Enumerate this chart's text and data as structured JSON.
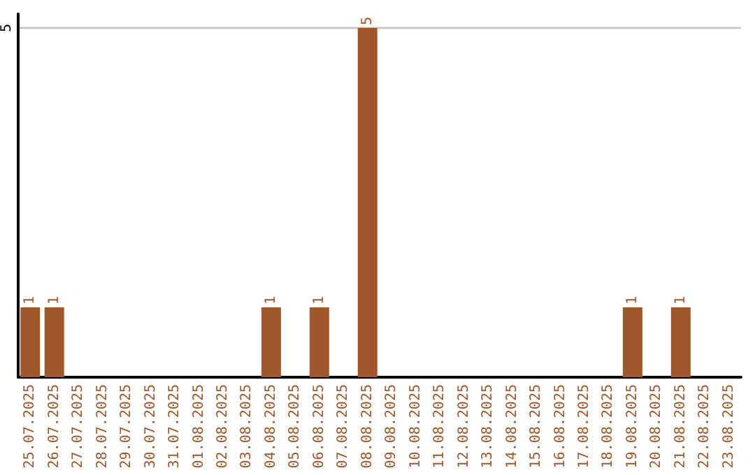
{
  "chart_data": {
    "type": "bar",
    "categories": [
      "25.07.2025",
      "26.07.2025",
      "27.07.2025",
      "28.07.2025",
      "29.07.2025",
      "30.07.2025",
      "31.07.2025",
      "01.08.2025",
      "02.08.2025",
      "03.08.2025",
      "04.08.2025",
      "05.08.2025",
      "06.08.2025",
      "07.08.2025",
      "08.08.2025",
      "09.08.2025",
      "10.08.2025",
      "11.08.2025",
      "12.08.2025",
      "13.08.2025",
      "14.08.2025",
      "15.08.2025",
      "16.08.2025",
      "17.08.2025",
      "18.08.2025",
      "19.08.2025",
      "20.08.2025",
      "21.08.2025",
      "22.08.2025",
      "23.08.2025"
    ],
    "values": [
      1,
      1,
      null,
      null,
      null,
      null,
      null,
      null,
      null,
      null,
      1,
      null,
      1,
      null,
      5,
      null,
      null,
      null,
      null,
      null,
      null,
      null,
      null,
      null,
      null,
      1,
      null,
      1,
      null,
      null
    ],
    "color": "#a0572b",
    "ylim": [
      0,
      5.2
    ],
    "yticks": [
      {
        "value": 0,
        "label": null
      },
      5
    ],
    "grid": "y",
    "data_labels": true
  }
}
